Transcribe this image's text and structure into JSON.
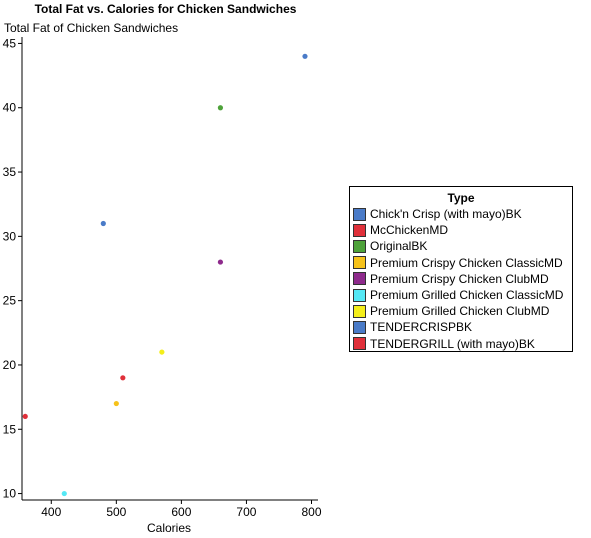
{
  "chart_data": {
    "type": "scatter",
    "title": "Total Fat vs. Calories for Chicken Sandwiches",
    "xlabel": "Calories",
    "ylabel": "Total Fat of Chicken Sandwiches",
    "xlim": [
      355,
      810
    ],
    "ylim": [
      9.5,
      45.5
    ],
    "xticks": [
      400,
      500,
      600,
      700,
      800
    ],
    "yticks": [
      10,
      15,
      20,
      25,
      30,
      35,
      40,
      45
    ],
    "grid": false,
    "legend_position": "right",
    "legend_title": "Type",
    "series": [
      {
        "name": "Chick'n Crisp (with mayo)BK",
        "color": "#4a7bc8",
        "points": [
          [
            480,
            31
          ]
        ]
      },
      {
        "name": "McChickenMD",
        "color": "#e0303a",
        "points": [
          [
            360,
            16
          ]
        ]
      },
      {
        "name": "OriginalBK",
        "color": "#4ea23a",
        "points": [
          [
            660,
            40
          ]
        ]
      },
      {
        "name": "Premium Crispy Chicken ClassicMD",
        "color": "#f6c21a",
        "points": [
          [
            500,
            17
          ]
        ]
      },
      {
        "name": "Premium Crispy Chicken ClubMD",
        "color": "#8e2a8c",
        "points": [
          [
            660,
            28
          ]
        ]
      },
      {
        "name": "Premium Grilled Chicken ClassicMD",
        "color": "#55e8f5",
        "points": [
          [
            420,
            10
          ]
        ]
      },
      {
        "name": "Premium Grilled Chicken ClubMD",
        "color": "#f4ee1a",
        "points": [
          [
            570,
            21
          ]
        ]
      },
      {
        "name": "TENDERCRISPBK",
        "color": "#4a7bc8",
        "points": [
          [
            790,
            44
          ]
        ]
      },
      {
        "name": "TENDERGRILL (with mayo)BK",
        "color": "#e0303a",
        "points": [
          [
            510,
            19
          ]
        ]
      }
    ]
  }
}
